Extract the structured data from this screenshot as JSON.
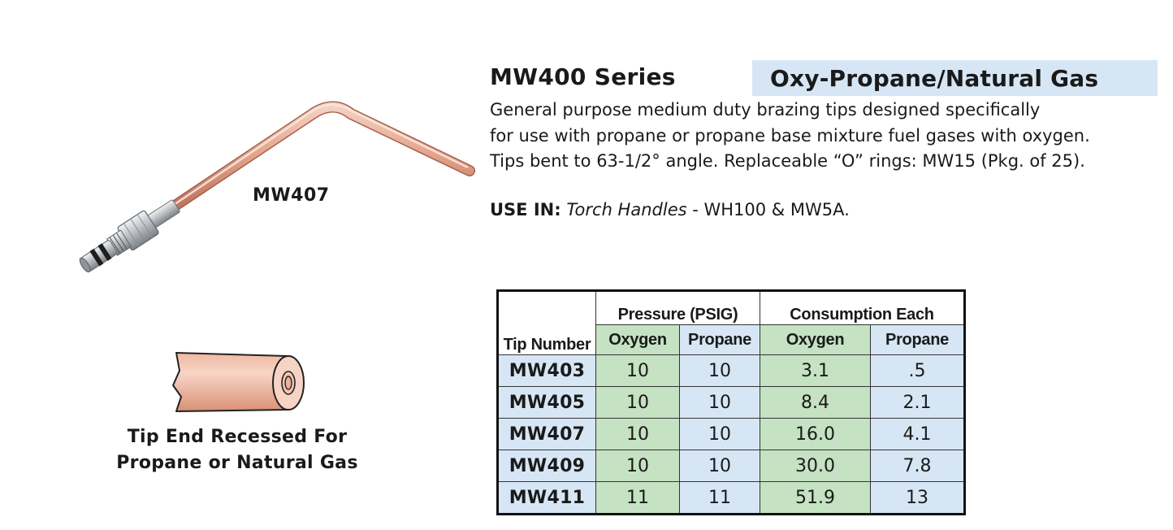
{
  "product": {
    "series_title": "MW400 Series",
    "gas_type": "Oxy-Propane/Natural Gas",
    "description_lines": [
      "General purpose medium duty brazing tips designed specifically",
      "for use with propane or propane base mixture fuel gases with oxygen.",
      "Tips bent to 63-1/2° angle.  Replaceable “O” rings: MW15 (Pkg. of 25)."
    ],
    "use_in": {
      "label": "USE IN:",
      "handles_label": "Torch Handles",
      "handles_value": " - WH100 & MW5A."
    }
  },
  "illustration": {
    "model_label": "MW407",
    "tip_caption_line1": "Tip End Recessed For",
    "tip_caption_line2": "Propane or Natural Gas",
    "colors": {
      "copper": "#d9957c",
      "copper_light": "#f3cdbd",
      "steel": "#b8bcc0"
    }
  },
  "table": {
    "header_tip": "Tip Number",
    "group_pressure": "Pressure (PSIG)",
    "group_consumption": "Consumption Each",
    "col_oxygen": "Oxygen",
    "col_propane": "Propane",
    "rows": [
      {
        "tip": "MW403",
        "p_oxygen": "10",
        "p_propane": "10",
        "c_oxygen": "3.1",
        "c_propane": ".5"
      },
      {
        "tip": "MW405",
        "p_oxygen": "10",
        "p_propane": "10",
        "c_oxygen": "8.4",
        "c_propane": "2.1"
      },
      {
        "tip": "MW407",
        "p_oxygen": "10",
        "p_propane": "10",
        "c_oxygen": "16.0",
        "c_propane": "4.1"
      },
      {
        "tip": "MW409",
        "p_oxygen": "10",
        "p_propane": "10",
        "c_oxygen": "30.0",
        "c_propane": "7.8"
      },
      {
        "tip": "MW411",
        "p_oxygen": "11",
        "p_propane": "11",
        "c_oxygen": "51.9",
        "c_propane": "13"
      }
    ],
    "colors": {
      "green": "#c5e2c3",
      "blue": "#d6e6f5"
    }
  }
}
